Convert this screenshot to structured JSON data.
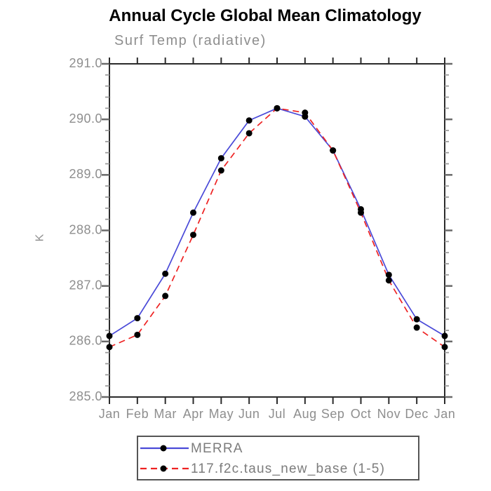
{
  "title": "Annual Cycle Global Mean Climatology",
  "subtitle": "Surf Temp (radiative)",
  "chart_data": {
    "type": "line",
    "title": "Annual Cycle Global Mean Climatology",
    "subtitle": "Surf Temp (radiative)",
    "xlabel": "",
    "ylabel": "K",
    "categories": [
      "Jan",
      "Feb",
      "Mar",
      "Apr",
      "May",
      "Jun",
      "Jul",
      "Aug",
      "Sep",
      "Oct",
      "Nov",
      "Dec",
      "Jan"
    ],
    "ylim": [
      285.0,
      291.0
    ],
    "ytick_interval": 1.0,
    "yminor_interval": 0.2,
    "ytick_labels": [
      "285.0",
      "286.0",
      "287.0",
      "288.0",
      "289.0",
      "290.0",
      "291.0"
    ],
    "grid": false,
    "legend_position": "bottom",
    "series": [
      {
        "name": "MERRA",
        "color": "#4a4ad8",
        "line_style": "solid",
        "marker": "filled-circle",
        "marker_color": "#000000",
        "values": [
          286.1,
          286.42,
          287.22,
          288.32,
          289.3,
          289.98,
          290.2,
          290.05,
          289.44,
          288.38,
          287.2,
          286.4,
          286.1
        ]
      },
      {
        "name": "117.f2c.taus_new_base (1-5)",
        "color": "#ee2222",
        "line_style": "dashed",
        "marker": "filled-circle",
        "marker_color": "#000000",
        "values": [
          285.9,
          286.12,
          286.82,
          287.92,
          289.08,
          289.75,
          290.2,
          290.12,
          289.44,
          288.32,
          287.1,
          286.25,
          285.9
        ]
      }
    ]
  },
  "colors": {
    "frame": "#2b2b2b",
    "major_tick": "#6a6a6a",
    "minor_tick": "#9c9c9c",
    "month_tick": "#2b2b2b",
    "tick_label": "#8e8e8e",
    "legend_border": "#555555",
    "legend_text": "#7c7c7c",
    "title_text": "#000000",
    "subtitle_text": "#8e8e8e"
  }
}
